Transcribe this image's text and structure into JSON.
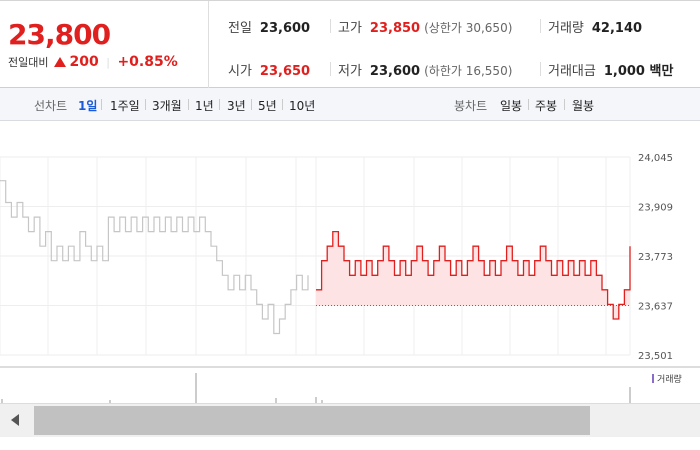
{
  "summary": {
    "price": "23,800",
    "change_label": "전일대비",
    "change_value": "200",
    "change_rate": "+0.85%",
    "prev_close_label": "전일",
    "prev_close": "23,600",
    "open_label": "시가",
    "open": "23,650",
    "high_label": "고가",
    "high": "23,850",
    "upper_limit": "(상한가 30,650)",
    "low_label": "저가",
    "low": "23,600",
    "lower_limit": "(하한가 16,550)",
    "volume_label": "거래량",
    "volume": "42,140",
    "amount_label": "거래대금",
    "amount": "1,000 백만"
  },
  "tabs": {
    "line_label": "선차트",
    "line_items": [
      "1일",
      "1주일",
      "3개월",
      "1년",
      "3년",
      "5년",
      "10년"
    ],
    "active": "1일",
    "candle_label": "봉차트",
    "candle_items": [
      "일봉",
      "주봉",
      "월봉"
    ]
  },
  "colors": {
    "up": "#e0201e",
    "prev_day": "#c6c6c6",
    "fill": "#fde3e3"
  },
  "icons": {
    "scroll_left": "left-arrow-icon"
  },
  "chart_data": {
    "type": "line",
    "title": "",
    "ylim": [
      23501,
      24045
    ],
    "ytick_labels": [
      "24,045",
      "23,909",
      "23,773",
      "23,637",
      "23,501"
    ],
    "reference_price": 23637,
    "volume_legend": "거래량",
    "series": [
      {
        "values": [
          23980,
          23920,
          23880,
          23920,
          23880,
          23840,
          23880,
          23800,
          23840,
          23760,
          23800,
          23760,
          23800,
          23760,
          23840,
          23800,
          23760,
          23800,
          23760,
          23880,
          23840,
          23880,
          23840,
          23880,
          23840,
          23880,
          23840,
          23880,
          23840,
          23880,
          23840,
          23880,
          23840,
          23880,
          23840,
          23880,
          23840,
          23800,
          23760,
          23720,
          23680,
          23720,
          23680,
          23720,
          23680,
          23640,
          23600,
          23640,
          23560,
          23600,
          23640,
          23680,
          23720,
          23680,
          23720
        ]
      },
      {
        "values": [
          23680,
          23760,
          23800,
          23840,
          23800,
          23760,
          23720,
          23760,
          23720,
          23760,
          23720,
          23760,
          23800,
          23760,
          23720,
          23760,
          23720,
          23760,
          23800,
          23760,
          23720,
          23760,
          23800,
          23760,
          23720,
          23760,
          23720,
          23760,
          23800,
          23760,
          23720,
          23760,
          23720,
          23760,
          23800,
          23760,
          23720,
          23760,
          23720,
          23760,
          23800,
          23760,
          23720,
          23760,
          23720,
          23760,
          23720,
          23760,
          23720,
          23760,
          23720,
          23680,
          23640,
          23600,
          23640,
          23680,
          23800
        ]
      }
    ]
  }
}
